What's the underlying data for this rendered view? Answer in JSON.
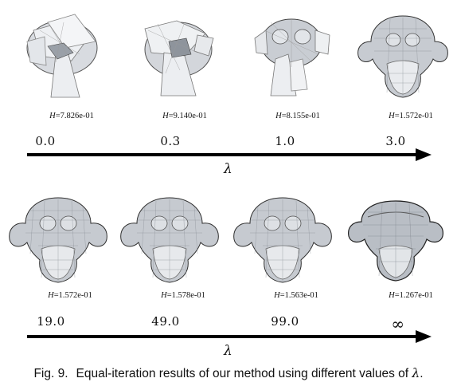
{
  "figure": {
    "rows": [
      {
        "cells": [
          {
            "h_prefix": "H",
            "h_value": "=7.826e-01",
            "lambda": "0.0",
            "state": "broken"
          },
          {
            "h_prefix": "H",
            "h_value": "=9.140e-01",
            "lambda": "0.3",
            "state": "broken"
          },
          {
            "h_prefix": "H",
            "h_value": "=8.155e-01",
            "lambda": "1.0",
            "state": "partial"
          },
          {
            "h_prefix": "H",
            "h_value": "=1.572e-01",
            "lambda": "3.0",
            "state": "smooth"
          }
        ],
        "axis_label": "λ"
      },
      {
        "cells": [
          {
            "h_prefix": "H",
            "h_value": "=1.572e-01",
            "lambda": "19.0",
            "state": "smooth"
          },
          {
            "h_prefix": "H",
            "h_value": "=1.578e-01",
            "lambda": "49.0",
            "state": "smooth"
          },
          {
            "h_prefix": "H",
            "h_value": "=1.563e-01",
            "lambda": "99.0",
            "state": "smooth"
          },
          {
            "h_prefix": "H",
            "h_value": "=1.267e-01",
            "lambda": "∞",
            "state": "flat"
          }
        ],
        "axis_label": "λ"
      }
    ],
    "caption": {
      "label": "Fig. 9.",
      "text": "Equal-iteration results of our method using different values of ",
      "symbol": "λ",
      "end": "."
    }
  }
}
